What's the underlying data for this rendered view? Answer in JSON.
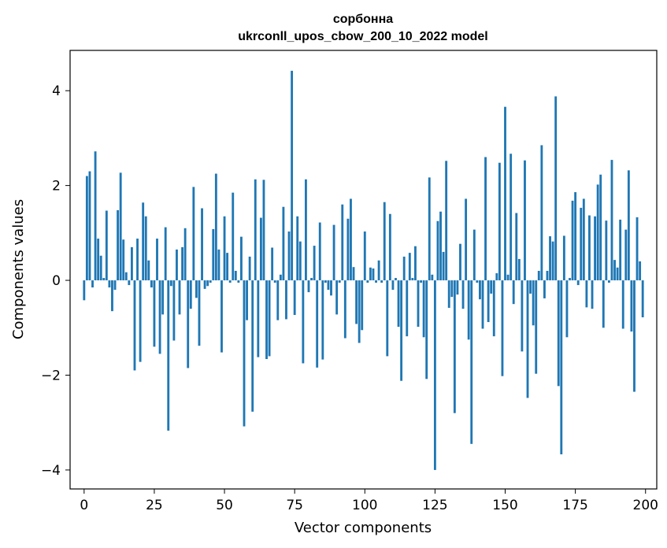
{
  "title_line1": "сорбонна",
  "title_line2": "ukrconll_upos_cbow_200_10_2022 model",
  "chart_data": {
    "type": "bar",
    "title": "сорбонна\nukrconll_upos_cbow_200_10_2022 model",
    "xlabel": "Vector components",
    "ylabel": "Components values",
    "xlim": [
      -5,
      204
    ],
    "ylim": [
      -4.4,
      4.85
    ],
    "xticks": [
      0,
      25,
      50,
      75,
      100,
      125,
      150,
      175,
      200
    ],
    "yticks": [
      -4,
      -2,
      0,
      2,
      4
    ],
    "xtick_labels": [
      "0",
      "25",
      "50",
      "75",
      "100",
      "125",
      "150",
      "175",
      "200"
    ],
    "ytick_labels": [
      "−4",
      "−2",
      "0",
      "2",
      "4"
    ],
    "grid": false,
    "bar_color": "#1f77b4",
    "x": [
      0,
      1,
      2,
      3,
      4,
      5,
      6,
      7,
      8,
      9,
      10,
      11,
      12,
      13,
      14,
      15,
      16,
      17,
      18,
      19,
      20,
      21,
      22,
      23,
      24,
      25,
      26,
      27,
      28,
      29,
      30,
      31,
      32,
      33,
      34,
      35,
      36,
      37,
      38,
      39,
      40,
      41,
      42,
      43,
      44,
      45,
      46,
      47,
      48,
      49,
      50,
      51,
      52,
      53,
      54,
      55,
      56,
      57,
      58,
      59,
      60,
      61,
      62,
      63,
      64,
      65,
      66,
      67,
      68,
      69,
      70,
      71,
      72,
      73,
      74,
      75,
      76,
      77,
      78,
      79,
      80,
      81,
      82,
      83,
      84,
      85,
      86,
      87,
      88,
      89,
      90,
      91,
      92,
      93,
      94,
      95,
      96,
      97,
      98,
      99,
      100,
      101,
      102,
      103,
      104,
      105,
      106,
      107,
      108,
      109,
      110,
      111,
      112,
      113,
      114,
      115,
      116,
      117,
      118,
      119,
      120,
      121,
      122,
      123,
      124,
      125,
      126,
      127,
      128,
      129,
      130,
      131,
      132,
      133,
      134,
      135,
      136,
      137,
      138,
      139,
      140,
      141,
      142,
      143,
      144,
      145,
      146,
      147,
      148,
      149,
      150,
      151,
      152,
      153,
      154,
      155,
      156,
      157,
      158,
      159,
      160,
      161,
      162,
      163,
      164,
      165,
      166,
      167,
      168,
      169,
      170,
      171,
      172,
      173,
      174,
      175,
      176,
      177,
      178,
      179,
      180,
      181,
      182,
      183,
      184,
      185,
      186,
      187,
      188,
      189,
      190,
      191,
      192,
      193,
      194,
      195,
      196,
      197,
      198,
      199
    ],
    "values": [
      -0.42,
      2.2,
      2.3,
      -0.15,
      2.72,
      0.88,
      0.52,
      0.05,
      1.47,
      -0.15,
      -0.65,
      -0.2,
      1.48,
      2.27,
      0.86,
      0.17,
      -0.1,
      0.7,
      -1.9,
      0.88,
      -1.72,
      1.64,
      1.35,
      0.42,
      -0.15,
      -1.4,
      0.88,
      -1.55,
      -0.72,
      1.12,
      -3.17,
      -0.12,
      -1.27,
      0.65,
      -0.72,
      0.7,
      1.1,
      -1.85,
      -0.6,
      1.97,
      -0.37,
      -1.38,
      1.52,
      -0.18,
      -0.12,
      -0.05,
      1.08,
      2.25,
      0.65,
      -1.52,
      1.35,
      0.58,
      -0.05,
      1.85,
      0.2,
      -0.05,
      0.92,
      -3.08,
      -0.84,
      0.5,
      -2.77,
      2.13,
      -1.62,
      1.32,
      2.12,
      -1.66,
      -1.6,
      0.69,
      -0.05,
      -0.84,
      0.12,
      1.55,
      -0.82,
      1.03,
      4.42,
      -0.73,
      1.35,
      0.82,
      -1.75,
      2.13,
      -0.25,
      0.05,
      0.73,
      -1.84,
      1.22,
      -1.67,
      -0.05,
      -0.2,
      -0.32,
      1.17,
      -0.72,
      -0.05,
      1.6,
      -1.22,
      1.3,
      1.72,
      0.28,
      -0.92,
      -1.32,
      -1.05,
      1.03,
      -0.05,
      0.27,
      0.25,
      -0.05,
      0.42,
      -0.05,
      1.65,
      -1.6,
      1.4,
      -0.2,
      0.05,
      -0.98,
      -2.12,
      0.5,
      -1.18,
      0.58,
      0.05,
      0.72,
      -0.98,
      -0.05,
      -1.2,
      -2.08,
      2.17,
      0.12,
      -4.0,
      1.25,
      1.45,
      0.6,
      2.52,
      -0.58,
      -0.35,
      -2.8,
      -0.3,
      0.77,
      -0.6,
      1.72,
      -1.25,
      -3.45,
      1.07,
      -0.05,
      -0.4,
      -1.02,
      2.6,
      -0.88,
      -0.28,
      -1.18,
      0.15,
      2.48,
      -2.02,
      3.66,
      0.12,
      2.67,
      -0.5,
      1.42,
      0.45,
      -1.5,
      2.53,
      -2.48,
      -0.28,
      -0.95,
      -1.97,
      0.2,
      2.85,
      -0.38,
      0.2,
      0.93,
      0.82,
      3.88,
      -2.23,
      -3.67,
      0.94,
      -1.2,
      0.05,
      1.68,
      1.86,
      -0.1,
      1.53,
      1.72,
      -0.57,
      1.37,
      -0.6,
      1.35,
      2.02,
      2.23,
      -1.0,
      1.26,
      -0.05,
      2.54,
      0.43,
      0.27,
      1.28,
      -1.02,
      1.07,
      2.32,
      -1.08,
      -2.35,
      1.33,
      0.4,
      -0.78
    ]
  }
}
